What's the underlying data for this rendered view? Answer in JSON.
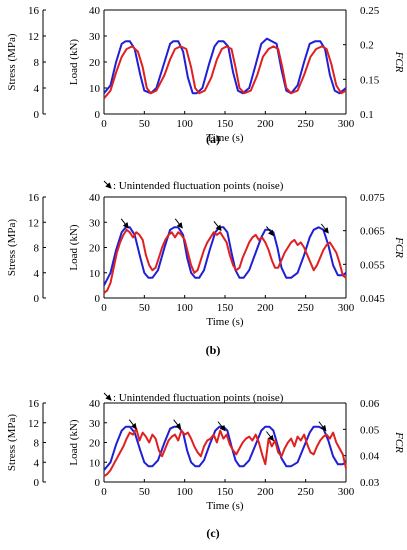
{
  "figure": {
    "annotation_text": ": Unintended fluctuation points (noise)"
  },
  "chart_data": [
    {
      "type": "line",
      "panel_label": "(a)",
      "xlabel": "Time (s)",
      "ylabel_load": "Load (kN)",
      "ylabel_stress": "Stress (MPa)",
      "ylabel_right": "FCR",
      "xlim": [
        0,
        300
      ],
      "xticks": [
        0,
        50,
        100,
        150,
        200,
        250,
        300
      ],
      "load_lim": [
        0,
        40
      ],
      "load_ticks": [
        0,
        10,
        20,
        30,
        40
      ],
      "stress_lim": [
        0,
        16
      ],
      "stress_ticks": [
        0,
        4,
        8,
        12,
        16
      ],
      "right_lim": [
        0.1,
        0.25
      ],
      "right_ticks": [
        "0.1",
        "0.15",
        "0.2",
        "0.25"
      ],
      "has_annotation": false,
      "series": [
        {
          "color": "#1f1fd6",
          "axis": "load",
          "x": [
            0,
            8,
            15,
            22,
            27,
            32,
            38,
            45,
            50,
            58,
            65,
            75,
            82,
            86,
            92,
            98,
            104,
            110,
            115,
            122,
            130,
            137,
            142,
            148,
            154,
            160,
            166,
            172,
            180,
            188,
            195,
            202,
            208,
            214,
            220,
            226,
            232,
            240,
            248,
            255,
            262,
            268,
            274,
            280,
            286,
            292,
            300
          ],
          "y": [
            8,
            11,
            20,
            27,
            28,
            28,
            25,
            15,
            9,
            8,
            10,
            20,
            27,
            28,
            28,
            24,
            14,
            8,
            8,
            10,
            19,
            26,
            28,
            28,
            26,
            16,
            9,
            8,
            10,
            19,
            27,
            29,
            28,
            27,
            17,
            9,
            8,
            11,
            20,
            27,
            28,
            28,
            25,
            15,
            9,
            8,
            10
          ]
        },
        {
          "color": "#e02020",
          "axis": "load",
          "x": [
            0,
            8,
            15,
            22,
            28,
            35,
            42,
            48,
            53,
            58,
            65,
            75,
            82,
            88,
            95,
            102,
            108,
            113,
            118,
            125,
            133,
            140,
            146,
            152,
            158,
            163,
            168,
            174,
            182,
            190,
            197,
            204,
            210,
            216,
            221,
            226,
            232,
            240,
            248,
            256,
            263,
            270,
            276,
            282,
            288,
            294,
            300
          ],
          "y": [
            6,
            9,
            16,
            22,
            25,
            26,
            24,
            18,
            10,
            8,
            9,
            15,
            21,
            25,
            26,
            25,
            18,
            10,
            8,
            9,
            14,
            21,
            25,
            26,
            25,
            18,
            10,
            8,
            9,
            15,
            22,
            25,
            26,
            25,
            18,
            10,
            8,
            9,
            15,
            22,
            25,
            26,
            25,
            19,
            11,
            8,
            9
          ]
        }
      ]
    },
    {
      "type": "line",
      "panel_label": "(b)",
      "xlabel": "Time (s)",
      "ylabel_load": "Load (kN)",
      "ylabel_stress": "Stress (MPa)",
      "ylabel_right": "FCR",
      "xlim": [
        0,
        300
      ],
      "xticks": [
        0,
        50,
        100,
        150,
        200,
        250,
        300
      ],
      "load_lim": [
        0,
        40
      ],
      "load_ticks": [
        0,
        10,
        20,
        30,
        40
      ],
      "stress_lim": [
        0,
        16
      ],
      "stress_ticks": [
        0,
        4,
        8,
        12,
        16
      ],
      "right_lim": [
        0.045,
        0.075
      ],
      "right_ticks": [
        "0.045",
        "0.055",
        "0.065",
        "0.075"
      ],
      "has_annotation": true,
      "arrow_x": [
        30,
        97,
        145,
        210,
        278
      ],
      "arrow_y": [
        27,
        27,
        26,
        24,
        25
      ],
      "series": [
        {
          "color": "#1f1fd6",
          "axis": "load",
          "x": [
            0,
            8,
            15,
            22,
            27,
            32,
            38,
            45,
            50,
            55,
            60,
            67,
            75,
            82,
            87,
            92,
            98,
            103,
            108,
            113,
            118,
            124,
            131,
            138,
            143,
            148,
            153,
            158,
            163,
            168,
            173,
            180,
            188,
            195,
            200,
            205,
            210,
            215,
            220,
            226,
            232,
            240,
            248,
            255,
            260,
            266,
            272,
            278,
            284,
            290,
            296,
            300
          ],
          "y": [
            5,
            10,
            19,
            26,
            28,
            28,
            25,
            16,
            10,
            8,
            8,
            11,
            20,
            27,
            28,
            28,
            25,
            16,
            10,
            8,
            8,
            11,
            19,
            26,
            28,
            28,
            26,
            18,
            11,
            8,
            8,
            11,
            18,
            24,
            27,
            27,
            26,
            20,
            12,
            8,
            8,
            10,
            17,
            24,
            27,
            28,
            27,
            21,
            13,
            9,
            9,
            10
          ]
        },
        {
          "color": "#e02020",
          "axis": "load",
          "x": [
            0,
            4,
            8,
            12,
            16,
            20,
            24,
            28,
            32,
            36,
            40,
            44,
            48,
            52,
            56,
            60,
            64,
            68,
            72,
            76,
            80,
            84,
            88,
            92,
            96,
            100,
            104,
            108,
            112,
            116,
            120,
            124,
            128,
            132,
            136,
            140,
            144,
            148,
            152,
            156,
            160,
            164,
            168,
            172,
            176,
            180,
            184,
            188,
            192,
            196,
            200,
            204,
            208,
            212,
            216,
            220,
            224,
            228,
            232,
            236,
            240,
            244,
            248,
            252,
            256,
            260,
            264,
            268,
            272,
            276,
            280,
            284,
            288,
            292,
            296,
            300
          ],
          "y": [
            2,
            3,
            6,
            12,
            18,
            22,
            25,
            27,
            26,
            24,
            26,
            25,
            23,
            17,
            13,
            11,
            12,
            16,
            20,
            23,
            25,
            26,
            24,
            26,
            25,
            23,
            18,
            13,
            10,
            11,
            15,
            19,
            22,
            24,
            26,
            25,
            26,
            24,
            22,
            17,
            13,
            11,
            12,
            16,
            19,
            22,
            24,
            25,
            23,
            24,
            22,
            19,
            15,
            12,
            12,
            15,
            18,
            20,
            22,
            23,
            21,
            22,
            20,
            17,
            14,
            11,
            13,
            16,
            19,
            21,
            22,
            20,
            18,
            14,
            9,
            8
          ]
        }
      ]
    },
    {
      "type": "line",
      "panel_label": "(c)",
      "xlabel": "Time (s)",
      "ylabel_load": "Load (kN)",
      "ylabel_stress": "Stress (MPa)",
      "ylabel_right": "FCR",
      "xlim": [
        0,
        300
      ],
      "xticks": [
        0,
        50,
        100,
        150,
        200,
        250,
        300
      ],
      "load_lim": [
        0,
        40
      ],
      "load_ticks": [
        0,
        10,
        20,
        30,
        40
      ],
      "stress_lim": [
        0,
        16
      ],
      "stress_ticks": [
        0,
        4,
        8,
        12,
        16
      ],
      "right_lim": [
        0.03,
        0.06
      ],
      "right_ticks": [
        "0.03",
        "0.04",
        "0.05",
        "0.06"
      ],
      "has_annotation": true,
      "arrow_x": [
        40,
        95,
        150,
        210,
        275
      ],
      "arrow_y": [
        26,
        26,
        25,
        20,
        25
      ],
      "series": [
        {
          "color": "#1f1fd6",
          "axis": "load",
          "x": [
            0,
            8,
            15,
            22,
            27,
            32,
            38,
            45,
            50,
            55,
            60,
            67,
            75,
            82,
            87,
            92,
            98,
            103,
            108,
            113,
            118,
            124,
            131,
            138,
            143,
            148,
            153,
            158,
            163,
            168,
            173,
            180,
            188,
            195,
            200,
            205,
            210,
            215,
            220,
            226,
            232,
            240,
            248,
            255,
            260,
            266,
            272,
            278,
            284,
            290,
            296,
            300
          ],
          "y": [
            6,
            10,
            19,
            26,
            28,
            28,
            25,
            16,
            10,
            8,
            8,
            11,
            20,
            27,
            28,
            28,
            25,
            16,
            10,
            8,
            8,
            11,
            19,
            26,
            28,
            28,
            26,
            18,
            11,
            8,
            8,
            11,
            19,
            26,
            28,
            28,
            26,
            19,
            12,
            8,
            8,
            10,
            18,
            25,
            28,
            28,
            27,
            21,
            13,
            9,
            9,
            10
          ]
        },
        {
          "color": "#e02020",
          "axis": "load",
          "x": [
            0,
            4,
            8,
            12,
            16,
            20,
            24,
            28,
            32,
            36,
            40,
            44,
            48,
            52,
            56,
            60,
            64,
            68,
            72,
            76,
            80,
            84,
            88,
            92,
            96,
            100,
            104,
            108,
            112,
            116,
            120,
            124,
            128,
            132,
            136,
            140,
            144,
            148,
            152,
            156,
            160,
            164,
            168,
            172,
            176,
            180,
            184,
            188,
            192,
            196,
            200,
            204,
            208,
            212,
            216,
            220,
            224,
            228,
            232,
            236,
            240,
            244,
            248,
            252,
            256,
            260,
            264,
            268,
            272,
            276,
            280,
            284,
            288,
            292,
            296,
            300
          ],
          "y": [
            3,
            4,
            6,
            9,
            12,
            15,
            18,
            22,
            25,
            24,
            27,
            21,
            25,
            23,
            20,
            24,
            22,
            16,
            13,
            17,
            21,
            23,
            24,
            21,
            26,
            24,
            25,
            22,
            18,
            15,
            13,
            18,
            21,
            22,
            24,
            20,
            26,
            22,
            24,
            19,
            16,
            14,
            17,
            20,
            22,
            23,
            21,
            24,
            20,
            14,
            9,
            22,
            18,
            21,
            15,
            13,
            17,
            20,
            22,
            18,
            23,
            21,
            24,
            19,
            15,
            14,
            18,
            21,
            23,
            24,
            22,
            25,
            20,
            17,
            14,
            7
          ]
        }
      ]
    }
  ]
}
